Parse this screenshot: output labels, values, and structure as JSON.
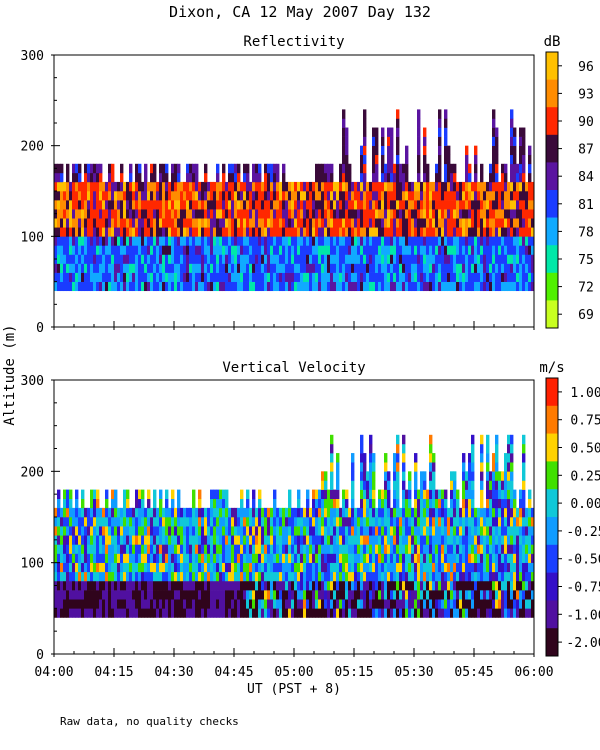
{
  "figure_title": "Dixon, CA 12 May 2007  Day 132",
  "ylabel_shared": "Altitude (m)",
  "footnote": "Raw data, no quality checks",
  "chart_data": [
    {
      "type": "heatmap",
      "title": "Reflectivity",
      "units": "dB",
      "xlabel": "",
      "ylabel": "Altitude (m)",
      "xlim": [
        0,
        120
      ],
      "ylim": [
        0,
        300
      ],
      "yticks": [
        0,
        100,
        200,
        300
      ],
      "x_tick_labels": [],
      "colorbar": {
        "labels": [
          "96",
          "93",
          "90",
          "87",
          "84",
          "81",
          "78",
          "75",
          "72",
          "69"
        ],
        "colors": [
          "#ffc000",
          "#ff8c00",
          "#ff2800",
          "#3a0a3a",
          "#5a14a0",
          "#1a3cff",
          "#10aaff",
          "#00e8a8",
          "#50f000",
          "#c8ff20"
        ]
      },
      "data_top_range_m": [
        160,
        240
      ],
      "data_bottom_m": 40,
      "core_layer_m": [
        95,
        155
      ],
      "core_value_db": 90
    },
    {
      "type": "heatmap",
      "title": "Vertical Velocity",
      "units": "m/s",
      "xlabel": "UT  (PST + 8)",
      "ylabel": "Altitude (m)",
      "xlim": [
        0,
        120
      ],
      "ylim": [
        0,
        300
      ],
      "yticks": [
        0,
        100,
        200,
        300
      ],
      "x_tick_labels": [
        "04:00",
        "04:15",
        "04:30",
        "04:45",
        "05:00",
        "05:15",
        "05:30",
        "05:45",
        "06:00"
      ],
      "colorbar": {
        "labels": [
          "1.00",
          "0.75",
          "0.50",
          "0.25",
          "0.00",
          "-0.25",
          "-0.50",
          "-0.75",
          "-1.00",
          "-2.00"
        ],
        "colors": [
          "#ff2000",
          "#ff7a00",
          "#ffd200",
          "#40e000",
          "#10c8d8",
          "#109cff",
          "#1a40ff",
          "#3410c8",
          "#5010a0",
          "#30041c"
        ]
      },
      "data_top_range_m": [
        160,
        240
      ],
      "data_bottom_m": 40,
      "low_layer_m": [
        40,
        80
      ],
      "low_layer_value_ms": -2.0
    }
  ]
}
